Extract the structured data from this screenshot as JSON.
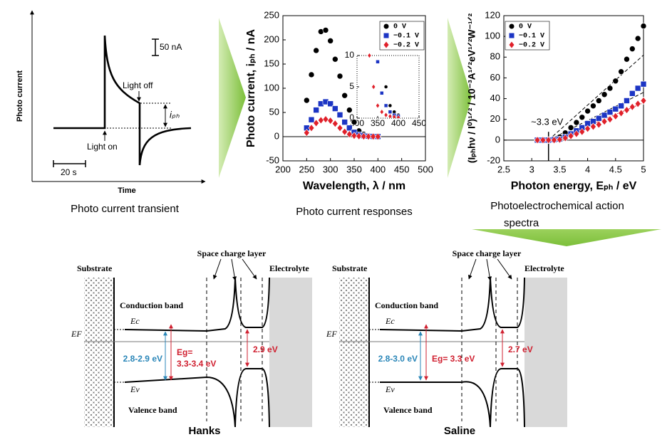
{
  "transient": {
    "y_label": "Photo current",
    "x_label": "Time",
    "scale_current": "50 nA",
    "scale_time": "20 s",
    "light_off": "Light off",
    "light_on": "Light on",
    "iph": "iₚₕ",
    "caption": "Photo current transient"
  },
  "chart_data": [
    {
      "type": "scatter",
      "caption": [
        "Photo current responses"
      ],
      "x_label": "Wavelength, λ / nm",
      "y_label": "Photo current, iₚₕ / nA",
      "x": [
        250,
        260,
        270,
        280,
        290,
        300,
        310,
        320,
        330,
        340,
        350,
        360,
        370,
        380,
        390,
        400
      ],
      "series": [
        {
          "name": "0 V",
          "color": "#000000",
          "marker": "circle",
          "values": [
            75,
            128,
            178,
            217,
            220,
            198,
            160,
            125,
            85,
            55,
            30,
            12,
            5,
            2,
            1,
            0.5
          ]
        },
        {
          "name": "−0.1 V",
          "color": "#1c35c4",
          "marker": "square",
          "values": [
            18,
            35,
            55,
            68,
            72,
            68,
            58,
            45,
            30,
            18,
            9,
            4,
            2,
            1,
            0.5,
            0.3
          ]
        },
        {
          "name": "−0.2 V",
          "color": "#e0202a",
          "marker": "diamond",
          "values": [
            8,
            18,
            28,
            34,
            36,
            33,
            27,
            18,
            10,
            5,
            2,
            1,
            0.5,
            0.3,
            0.2,
            0.1
          ]
        }
      ],
      "xlim": [
        200,
        500
      ],
      "ylim": [
        -50,
        250
      ],
      "xticks": [
        200,
        250,
        300,
        350,
        400,
        450,
        500
      ],
      "yticks": [
        -50,
        0,
        50,
        100,
        150,
        200,
        250
      ],
      "zero_line": true,
      "legend": "upper right",
      "inset": {
        "xlim": [
          300,
          450
        ],
        "ylim": [
          0,
          10
        ],
        "xticks": [
          300,
          350,
          400,
          450
        ],
        "yticks": [
          0,
          5,
          10
        ]
      }
    },
    {
      "type": "scatter",
      "caption": [
        "Photoelectrochemical action",
        "spectra"
      ],
      "x_label": "Photon energy, Eₚₕ / eV",
      "y_label": "(Iₚₕhν / I⁰)¹ᐟ² / 10⁻³A¹ᐟ²eV¹ᐟ²W⁻¹ᐟ²",
      "x": [
        3.1,
        3.2,
        3.3,
        3.4,
        3.5,
        3.6,
        3.7,
        3.8,
        3.9,
        4.0,
        4.1,
        4.2,
        4.3,
        4.4,
        4.5,
        4.6,
        4.7,
        4.8,
        4.9,
        5.0
      ],
      "series": [
        {
          "name": "0 V",
          "color": "#000000",
          "marker": "circle",
          "values": [
            0,
            0,
            0.5,
            1,
            3,
            7,
            12,
            17,
            22,
            28,
            33,
            38,
            44,
            50,
            57,
            66,
            78,
            88,
            98,
            110
          ]
        },
        {
          "name": "−0.1 V",
          "color": "#1c35c4",
          "marker": "square",
          "values": [
            0,
            0,
            0,
            0.5,
            1,
            3,
            6,
            9,
            12,
            16,
            18,
            21,
            24,
            27,
            30,
            33,
            38,
            45,
            50,
            54
          ]
        },
        {
          "name": "−0.2 V",
          "color": "#e0202a",
          "marker": "diamond",
          "values": [
            0,
            0,
            0,
            0,
            0.5,
            2,
            4,
            6,
            8,
            11,
            13,
            15,
            18,
            20,
            23,
            26,
            29,
            32,
            35,
            38
          ]
        }
      ],
      "fits": [
        {
          "x": [
            3.3,
            5.0
          ],
          "values": [
            0,
            82
          ]
        },
        {
          "x": [
            3.3,
            5.0
          ],
          "values": [
            0,
            46
          ]
        },
        {
          "x": [
            3.4,
            5.0
          ],
          "values": [
            0,
            36
          ]
        }
      ],
      "annotation": {
        "text": "~3.3 eV",
        "x": 3.3
      },
      "xlim": [
        2.5,
        5
      ],
      "ylim": [
        -20,
        120
      ],
      "xticks": [
        2.5,
        3,
        3.5,
        4,
        4.5,
        5
      ],
      "yticks": [
        -20,
        0,
        20,
        40,
        60,
        80,
        100,
        120
      ],
      "zero_line": true,
      "legend": "upper left"
    }
  ],
  "band_diagrams": [
    {
      "space_charge_layer": "Space charge layer",
      "substrate": "Substrate",
      "electrolyte": "Electrolyte",
      "conduction_band": "Conduction band",
      "valence_band": "Valence band",
      "ec": "Ec",
      "ev": "Ev",
      "ef": "EF",
      "gap_blue": "2.8-2.9 eV",
      "eg": [
        "Eg=",
        "3.3-3.4 eV"
      ],
      "gap_surface": "2.9 eV",
      "name": "Hanks"
    },
    {
      "space_charge_layer": "Space charge layer",
      "substrate": "Substrate",
      "electrolyte": "Electrolyte",
      "conduction_band": "Conduction band",
      "valence_band": "Valence band",
      "ec": "Ec",
      "ev": "Ev",
      "ef": "EF",
      "gap_blue": "2.8-3.0 eV",
      "eg": [
        "Eg= 3.3 eV"
      ],
      "gap_surface": "2.7 eV",
      "name": "Saline"
    }
  ]
}
